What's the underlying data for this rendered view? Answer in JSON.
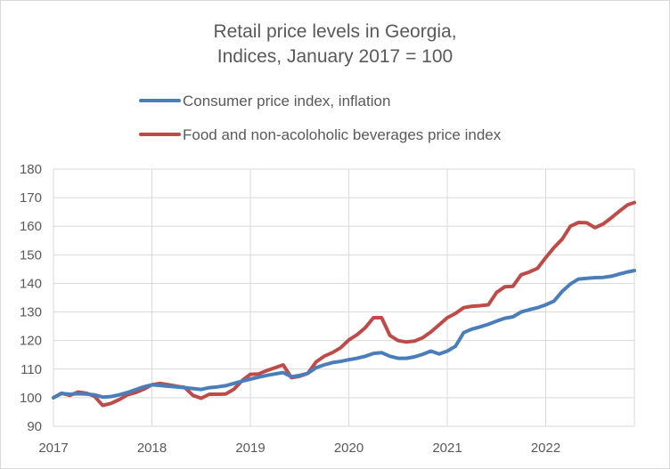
{
  "chart_data": {
    "type": "line",
    "title_lines": [
      "Retail price levels in Georgia,",
      "Indices, January 2017 = 100"
    ],
    "xlabel": "",
    "ylabel": "",
    "ylim": [
      90,
      180
    ],
    "yticks": [
      90,
      100,
      110,
      120,
      130,
      140,
      150,
      160,
      170,
      180
    ],
    "xlim": [
      2017.0,
      2022.9
    ],
    "xticks": [
      2017,
      2018,
      2019,
      2020,
      2021,
      2022
    ],
    "xtick_labels": [
      "2017",
      "2018",
      "2019",
      "2020",
      "2021",
      "2022"
    ],
    "grid": "vertical and horizontal",
    "legend_position": "top",
    "series": [
      {
        "name": "Consumer price index, inflation",
        "color": "#4a7ebb",
        "x": [
          2017.0,
          2017.083,
          2017.167,
          2017.25,
          2017.333,
          2017.417,
          2017.5,
          2017.583,
          2017.667,
          2017.75,
          2017.833,
          2017.917,
          2018.0,
          2018.083,
          2018.167,
          2018.25,
          2018.333,
          2018.417,
          2018.5,
          2018.583,
          2018.667,
          2018.75,
          2018.833,
          2018.917,
          2019.0,
          2019.083,
          2019.167,
          2019.25,
          2019.333,
          2019.417,
          2019.5,
          2019.583,
          2019.667,
          2019.75,
          2019.833,
          2019.917,
          2020.0,
          2020.083,
          2020.167,
          2020.25,
          2020.333,
          2020.417,
          2020.5,
          2020.583,
          2020.667,
          2020.75,
          2020.833,
          2020.917,
          2021.0,
          2021.083,
          2021.167,
          2021.25,
          2021.333,
          2021.417,
          2021.5,
          2021.583,
          2021.667,
          2021.75,
          2021.833,
          2021.917,
          2022.0,
          2022.083,
          2022.167,
          2022.25,
          2022.333,
          2022.417,
          2022.5,
          2022.583,
          2022.667,
          2022.75,
          2022.833,
          2022.9
        ],
        "values": [
          100.0,
          101.5,
          101.2,
          101.4,
          101.3,
          101.0,
          100.2,
          100.4,
          101.0,
          101.8,
          102.8,
          103.8,
          104.5,
          104.3,
          104.0,
          103.8,
          103.5,
          103.2,
          102.9,
          103.5,
          103.8,
          104.2,
          105.0,
          105.8,
          106.5,
          107.2,
          107.8,
          108.3,
          108.8,
          107.3,
          107.8,
          108.5,
          110.5,
          111.5,
          112.3,
          112.7,
          113.3,
          113.8,
          114.5,
          115.5,
          115.8,
          114.5,
          113.8,
          113.8,
          114.3,
          115.2,
          116.3,
          115.3,
          116.3,
          118.0,
          122.8,
          124.0,
          124.8,
          125.7,
          126.8,
          127.8,
          128.3,
          130.0,
          130.8,
          131.5,
          132.5,
          133.8,
          137.2,
          139.8,
          141.5,
          141.8,
          142.0,
          142.1,
          142.5,
          143.3,
          144.0,
          144.5
        ]
      },
      {
        "name": "Food and non-acoloholic beverages price index",
        "color": "#be4b48",
        "x": [
          2017.0,
          2017.083,
          2017.167,
          2017.25,
          2017.333,
          2017.417,
          2017.5,
          2017.583,
          2017.667,
          2017.75,
          2017.833,
          2017.917,
          2018.0,
          2018.083,
          2018.167,
          2018.25,
          2018.333,
          2018.417,
          2018.5,
          2018.583,
          2018.667,
          2018.75,
          2018.833,
          2018.917,
          2019.0,
          2019.083,
          2019.167,
          2019.25,
          2019.333,
          2019.417,
          2019.5,
          2019.583,
          2019.667,
          2019.75,
          2019.833,
          2019.917,
          2020.0,
          2020.083,
          2020.167,
          2020.25,
          2020.333,
          2020.417,
          2020.5,
          2020.583,
          2020.667,
          2020.75,
          2020.833,
          2020.917,
          2021.0,
          2021.083,
          2021.167,
          2021.25,
          2021.333,
          2021.417,
          2021.5,
          2021.583,
          2021.667,
          2021.75,
          2021.833,
          2021.917,
          2022.0,
          2022.083,
          2022.167,
          2022.25,
          2022.333,
          2022.417,
          2022.5,
          2022.583,
          2022.667,
          2022.75,
          2022.833,
          2022.9
        ],
        "values": [
          100.0,
          101.6,
          100.8,
          102.0,
          101.6,
          100.5,
          97.3,
          98.0,
          99.3,
          101.0,
          101.8,
          103.0,
          104.5,
          105.0,
          104.5,
          104.0,
          103.6,
          100.8,
          99.8,
          101.2,
          101.2,
          101.3,
          103.0,
          106.0,
          108.2,
          108.3,
          109.5,
          110.5,
          111.5,
          107.0,
          107.5,
          108.5,
          112.5,
          114.5,
          115.8,
          117.5,
          120.2,
          122.0,
          124.5,
          128.0,
          128.0,
          121.8,
          120.0,
          119.5,
          119.8,
          121.0,
          123.0,
          125.5,
          128.0,
          129.5,
          131.5,
          132.0,
          132.2,
          132.5,
          136.8,
          138.8,
          139.0,
          143.0,
          144.0,
          145.3,
          149.0,
          152.5,
          155.5,
          160.0,
          161.3,
          161.2,
          159.5,
          160.8,
          163.0,
          165.3,
          167.5,
          168.3
        ]
      }
    ]
  }
}
